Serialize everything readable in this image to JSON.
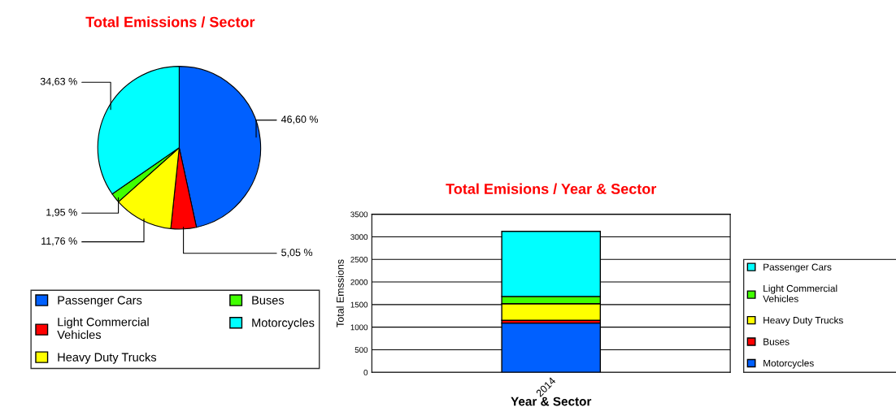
{
  "chart_data": [
    {
      "type": "pie",
      "title": "Total Emissions / Sector",
      "categories": [
        "Passenger Cars",
        "Light Commercial\nVehicles",
        "Heavy Duty Trucks",
        "Buses",
        "Motorcycles"
      ],
      "values": [
        46.6,
        5.05,
        11.76,
        1.95,
        34.63
      ],
      "colors": [
        "#0060ff",
        "#ff0000",
        "#ffff00",
        "#40ff00",
        "#00ffff"
      ],
      "value_labels": [
        "46,60 %",
        "5,05 %",
        "11,76 %",
        "1,95 %",
        "34,63 %"
      ],
      "legend": "bottom"
    },
    {
      "type": "bar",
      "title": "Total Emisions / Year & Sector",
      "xlabel": "Year & Sector",
      "ylabel": "Total Emssions",
      "categories": [
        "2014"
      ],
      "stacked": true,
      "series": [
        {
          "name": "Motorcycles",
          "color": "#0060ff",
          "values": [
            1090
          ]
        },
        {
          "name": "Buses",
          "color": "#ff0000",
          "values": [
            60
          ]
        },
        {
          "name": "Heavy Duty Trucks",
          "color": "#ffff00",
          "values": [
            370
          ]
        },
        {
          "name": "Light Commercial\nVehicles",
          "color": "#40ff00",
          "values": [
            160
          ]
        },
        {
          "name": "Passenger Cars",
          "color": "#00ffff",
          "values": [
            1440
          ]
        }
      ],
      "ylim": [
        0,
        3500
      ],
      "yticks": [
        0,
        500,
        1000,
        1500,
        2000,
        2500,
        3000,
        3500
      ],
      "grid": "y",
      "legend": "right"
    }
  ]
}
